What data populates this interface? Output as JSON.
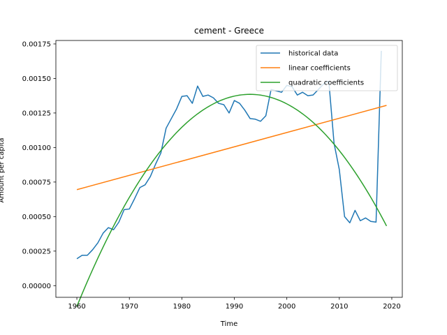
{
  "chart_data": {
    "type": "line",
    "title": "cement - Greece",
    "xlabel": "Time",
    "ylabel": "Amount per capita",
    "xlim": [
      1956,
      2022
    ],
    "ylim": [
      -8.45e-05,
      0.001775
    ],
    "xticks": [
      1960,
      1970,
      1980,
      1990,
      2000,
      2010,
      2020
    ],
    "xtick_labels": [
      "1960",
      "1970",
      "1980",
      "1990",
      "2000",
      "2010",
      "2020"
    ],
    "yticks": [
      0,
      0.00025,
      0.0005,
      0.00075,
      0.001,
      0.00125,
      0.0015,
      0.00175
    ],
    "ytick_labels": [
      "0.00000",
      "0.00025",
      "0.00050",
      "0.00075",
      "0.00100",
      "0.00125",
      "0.00150",
      "0.00175"
    ],
    "grid": false,
    "legend_position": "top-right",
    "series": [
      {
        "name": "historical data",
        "color": "#1f77b4",
        "x": [
          1960,
          1961,
          1962,
          1963,
          1964,
          1965,
          1966,
          1967,
          1968,
          1969,
          1970,
          1971,
          1972,
          1973,
          1974,
          1975,
          1976,
          1977,
          1978,
          1979,
          1980,
          1981,
          1982,
          1983,
          1984,
          1985,
          1986,
          1987,
          1988,
          1989,
          1990,
          1991,
          1992,
          1993,
          1994,
          1995,
          1996,
          1997,
          1998,
          1999,
          2000,
          2001,
          2002,
          2003,
          2004,
          2005,
          2006,
          2007,
          2008,
          2009,
          2010,
          2011,
          2012,
          2013,
          2014,
          2015,
          2016,
          2017,
          2018
        ],
        "y": [
          0.000195,
          0.00022,
          0.00022,
          0.00026,
          0.00031,
          0.00038,
          0.00042,
          0.000405,
          0.00046,
          0.00055,
          0.000555,
          0.00063,
          0.00071,
          0.00073,
          0.00079,
          0.00088,
          0.00096,
          0.00114,
          0.00121,
          0.00128,
          0.00137,
          0.001375,
          0.00132,
          0.001445,
          0.00137,
          0.00138,
          0.00136,
          0.00132,
          0.00131,
          0.00125,
          0.00134,
          0.00132,
          0.00127,
          0.00121,
          0.001205,
          0.00119,
          0.00123,
          0.00142,
          0.00141,
          0.0014,
          0.00145,
          0.00144,
          0.00138,
          0.0014,
          0.001375,
          0.00138,
          0.00142,
          0.00146,
          0.00148,
          0.00103,
          0.00084,
          0.0005,
          0.000455,
          0.000545,
          0.00047,
          0.00049,
          0.000465,
          0.00046,
          0.0017
        ]
      },
      {
        "name": "linear coefficients",
        "color": "#ff7f0e",
        "x": [
          1960,
          2019
        ],
        "y": [
          0.000695,
          0.001305
        ]
      },
      {
        "name": "quadratic coefficients",
        "color": "#2ca02c",
        "quadratic": {
          "a": -1.41e-06,
          "x0": 1993,
          "ymax": 0.001385
        },
        "x_range": [
          1960,
          2019
        ]
      }
    ]
  }
}
